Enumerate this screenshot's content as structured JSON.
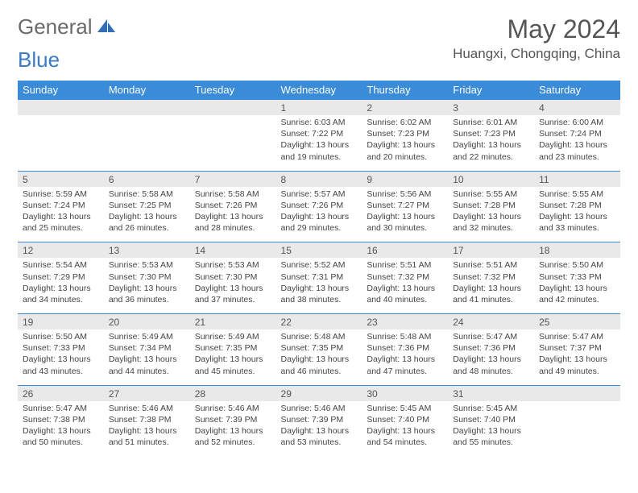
{
  "logo": {
    "part1": "General",
    "part2": "Blue"
  },
  "title": "May 2024",
  "location": "Huangxi, Chongqing, China",
  "colors": {
    "header_bg": "#3a8bd8",
    "header_text": "#ffffff",
    "numrow_bg": "#e9e9e9",
    "row_border": "#3a8bd8",
    "body_text": "#444444",
    "title_text": "#555555",
    "logo_gray": "#6a6a6a",
    "logo_blue": "#3a7cc4",
    "page_bg": "#ffffff"
  },
  "dayNames": [
    "Sunday",
    "Monday",
    "Tuesday",
    "Wednesday",
    "Thursday",
    "Friday",
    "Saturday"
  ],
  "weeks": [
    [
      null,
      null,
      null,
      {
        "n": "1",
        "sr": "Sunrise: 6:03 AM",
        "ss": "Sunset: 7:22 PM",
        "d1": "Daylight: 13 hours",
        "d2": "and 19 minutes."
      },
      {
        "n": "2",
        "sr": "Sunrise: 6:02 AM",
        "ss": "Sunset: 7:23 PM",
        "d1": "Daylight: 13 hours",
        "d2": "and 20 minutes."
      },
      {
        "n": "3",
        "sr": "Sunrise: 6:01 AM",
        "ss": "Sunset: 7:23 PM",
        "d1": "Daylight: 13 hours",
        "d2": "and 22 minutes."
      },
      {
        "n": "4",
        "sr": "Sunrise: 6:00 AM",
        "ss": "Sunset: 7:24 PM",
        "d1": "Daylight: 13 hours",
        "d2": "and 23 minutes."
      }
    ],
    [
      {
        "n": "5",
        "sr": "Sunrise: 5:59 AM",
        "ss": "Sunset: 7:24 PM",
        "d1": "Daylight: 13 hours",
        "d2": "and 25 minutes."
      },
      {
        "n": "6",
        "sr": "Sunrise: 5:58 AM",
        "ss": "Sunset: 7:25 PM",
        "d1": "Daylight: 13 hours",
        "d2": "and 26 minutes."
      },
      {
        "n": "7",
        "sr": "Sunrise: 5:58 AM",
        "ss": "Sunset: 7:26 PM",
        "d1": "Daylight: 13 hours",
        "d2": "and 28 minutes."
      },
      {
        "n": "8",
        "sr": "Sunrise: 5:57 AM",
        "ss": "Sunset: 7:26 PM",
        "d1": "Daylight: 13 hours",
        "d2": "and 29 minutes."
      },
      {
        "n": "9",
        "sr": "Sunrise: 5:56 AM",
        "ss": "Sunset: 7:27 PM",
        "d1": "Daylight: 13 hours",
        "d2": "and 30 minutes."
      },
      {
        "n": "10",
        "sr": "Sunrise: 5:55 AM",
        "ss": "Sunset: 7:28 PM",
        "d1": "Daylight: 13 hours",
        "d2": "and 32 minutes."
      },
      {
        "n": "11",
        "sr": "Sunrise: 5:55 AM",
        "ss": "Sunset: 7:28 PM",
        "d1": "Daylight: 13 hours",
        "d2": "and 33 minutes."
      }
    ],
    [
      {
        "n": "12",
        "sr": "Sunrise: 5:54 AM",
        "ss": "Sunset: 7:29 PM",
        "d1": "Daylight: 13 hours",
        "d2": "and 34 minutes."
      },
      {
        "n": "13",
        "sr": "Sunrise: 5:53 AM",
        "ss": "Sunset: 7:30 PM",
        "d1": "Daylight: 13 hours",
        "d2": "and 36 minutes."
      },
      {
        "n": "14",
        "sr": "Sunrise: 5:53 AM",
        "ss": "Sunset: 7:30 PM",
        "d1": "Daylight: 13 hours",
        "d2": "and 37 minutes."
      },
      {
        "n": "15",
        "sr": "Sunrise: 5:52 AM",
        "ss": "Sunset: 7:31 PM",
        "d1": "Daylight: 13 hours",
        "d2": "and 38 minutes."
      },
      {
        "n": "16",
        "sr": "Sunrise: 5:51 AM",
        "ss": "Sunset: 7:32 PM",
        "d1": "Daylight: 13 hours",
        "d2": "and 40 minutes."
      },
      {
        "n": "17",
        "sr": "Sunrise: 5:51 AM",
        "ss": "Sunset: 7:32 PM",
        "d1": "Daylight: 13 hours",
        "d2": "and 41 minutes."
      },
      {
        "n": "18",
        "sr": "Sunrise: 5:50 AM",
        "ss": "Sunset: 7:33 PM",
        "d1": "Daylight: 13 hours",
        "d2": "and 42 minutes."
      }
    ],
    [
      {
        "n": "19",
        "sr": "Sunrise: 5:50 AM",
        "ss": "Sunset: 7:33 PM",
        "d1": "Daylight: 13 hours",
        "d2": "and 43 minutes."
      },
      {
        "n": "20",
        "sr": "Sunrise: 5:49 AM",
        "ss": "Sunset: 7:34 PM",
        "d1": "Daylight: 13 hours",
        "d2": "and 44 minutes."
      },
      {
        "n": "21",
        "sr": "Sunrise: 5:49 AM",
        "ss": "Sunset: 7:35 PM",
        "d1": "Daylight: 13 hours",
        "d2": "and 45 minutes."
      },
      {
        "n": "22",
        "sr": "Sunrise: 5:48 AM",
        "ss": "Sunset: 7:35 PM",
        "d1": "Daylight: 13 hours",
        "d2": "and 46 minutes."
      },
      {
        "n": "23",
        "sr": "Sunrise: 5:48 AM",
        "ss": "Sunset: 7:36 PM",
        "d1": "Daylight: 13 hours",
        "d2": "and 47 minutes."
      },
      {
        "n": "24",
        "sr": "Sunrise: 5:47 AM",
        "ss": "Sunset: 7:36 PM",
        "d1": "Daylight: 13 hours",
        "d2": "and 48 minutes."
      },
      {
        "n": "25",
        "sr": "Sunrise: 5:47 AM",
        "ss": "Sunset: 7:37 PM",
        "d1": "Daylight: 13 hours",
        "d2": "and 49 minutes."
      }
    ],
    [
      {
        "n": "26",
        "sr": "Sunrise: 5:47 AM",
        "ss": "Sunset: 7:38 PM",
        "d1": "Daylight: 13 hours",
        "d2": "and 50 minutes."
      },
      {
        "n": "27",
        "sr": "Sunrise: 5:46 AM",
        "ss": "Sunset: 7:38 PM",
        "d1": "Daylight: 13 hours",
        "d2": "and 51 minutes."
      },
      {
        "n": "28",
        "sr": "Sunrise: 5:46 AM",
        "ss": "Sunset: 7:39 PM",
        "d1": "Daylight: 13 hours",
        "d2": "and 52 minutes."
      },
      {
        "n": "29",
        "sr": "Sunrise: 5:46 AM",
        "ss": "Sunset: 7:39 PM",
        "d1": "Daylight: 13 hours",
        "d2": "and 53 minutes."
      },
      {
        "n": "30",
        "sr": "Sunrise: 5:45 AM",
        "ss": "Sunset: 7:40 PM",
        "d1": "Daylight: 13 hours",
        "d2": "and 54 minutes."
      },
      {
        "n": "31",
        "sr": "Sunrise: 5:45 AM",
        "ss": "Sunset: 7:40 PM",
        "d1": "Daylight: 13 hours",
        "d2": "and 55 minutes."
      },
      null
    ]
  ]
}
